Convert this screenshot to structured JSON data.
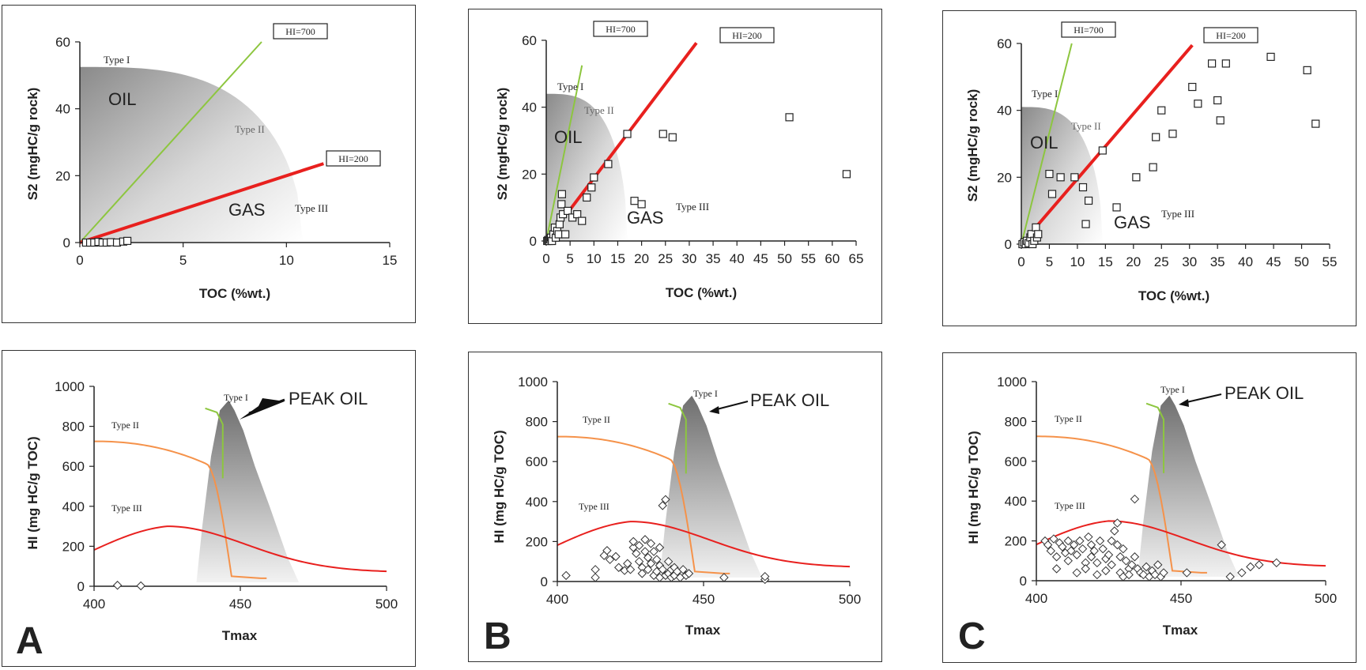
{
  "top_common": {
    "xlabel": "TOC (%wt.)",
    "ylabel": "S2 (mgHC/g rock)",
    "hi700": "HI=700",
    "hi200": "HI=200",
    "type1": "Type I",
    "type2": "Type II",
    "type3": "Type III",
    "oil": "OIL",
    "gas": "GAS"
  },
  "bottom_common": {
    "xlabel": "Tmax",
    "ylabel": "HI (mg HC/g TOC)",
    "type1": "Type I",
    "type2": "Type II",
    "type3": "Type III",
    "peak": "PEAK OIL"
  },
  "letters": {
    "a": "A",
    "b": "B",
    "c": "C"
  },
  "chart_data": [
    {
      "panel": "A",
      "type": "scatter",
      "xlim": [
        0,
        15
      ],
      "ylim": [
        0,
        60
      ],
      "xticks": [
        0,
        5,
        10,
        15
      ],
      "yticks": [
        0,
        20,
        40,
        60
      ],
      "points": [
        [
          0.3,
          0
        ],
        [
          0.5,
          0
        ],
        [
          0.7,
          0
        ],
        [
          0.9,
          0.2
        ],
        [
          1.1,
          0
        ],
        [
          1.3,
          0
        ],
        [
          1.5,
          0.1
        ],
        [
          1.8,
          0
        ],
        [
          2.1,
          0.3
        ],
        [
          2.3,
          0.5
        ]
      ]
    },
    {
      "panel": "B",
      "type": "scatter",
      "xlim": [
        0,
        65
      ],
      "ylim": [
        0,
        60
      ],
      "xticks": [
        0,
        5,
        10,
        15,
        20,
        25,
        30,
        35,
        40,
        45,
        50,
        55,
        60,
        65
      ],
      "yticks": [
        0,
        20,
        40,
        60
      ],
      "points": [
        [
          0.2,
          0
        ],
        [
          0.4,
          0.3
        ],
        [
          0.6,
          0
        ],
        [
          0.8,
          0.5
        ],
        [
          1.0,
          1
        ],
        [
          1.2,
          0
        ],
        [
          1.5,
          2
        ],
        [
          1.8,
          4
        ],
        [
          2.0,
          1
        ],
        [
          2.3,
          3
        ],
        [
          2.6,
          2
        ],
        [
          2.8,
          5
        ],
        [
          3.0,
          7
        ],
        [
          3.2,
          11
        ],
        [
          3.3,
          14
        ],
        [
          3.5,
          8
        ],
        [
          4.0,
          2
        ],
        [
          4.5,
          9
        ],
        [
          5.5,
          7
        ],
        [
          6.5,
          8
        ],
        [
          7.5,
          6
        ],
        [
          8.5,
          13
        ],
        [
          9.5,
          16
        ],
        [
          10.0,
          19
        ],
        [
          13.0,
          23
        ],
        [
          17.0,
          32
        ],
        [
          18.5,
          12
        ],
        [
          20.0,
          11
        ],
        [
          24.5,
          32
        ],
        [
          26.5,
          31
        ],
        [
          51.0,
          37
        ],
        [
          63.0,
          20
        ]
      ]
    },
    {
      "panel": "C",
      "type": "scatter",
      "xlim": [
        0,
        55
      ],
      "ylim": [
        0,
        60
      ],
      "xticks": [
        0,
        5,
        10,
        15,
        20,
        25,
        30,
        35,
        40,
        45,
        50,
        55
      ],
      "yticks": [
        0,
        20,
        40,
        60
      ],
      "points": [
        [
          0.2,
          0
        ],
        [
          0.5,
          0.5
        ],
        [
          0.8,
          0
        ],
        [
          1.0,
          1
        ],
        [
          1.3,
          0.3
        ],
        [
          1.6,
          2
        ],
        [
          1.8,
          3
        ],
        [
          2.0,
          0
        ],
        [
          2.3,
          1
        ],
        [
          2.6,
          5
        ],
        [
          2.8,
          2
        ],
        [
          3.0,
          3
        ],
        [
          5.0,
          21
        ],
        [
          5.5,
          15
        ],
        [
          7.0,
          20
        ],
        [
          9.5,
          20
        ],
        [
          11.0,
          17
        ],
        [
          11.5,
          6
        ],
        [
          12.0,
          13
        ],
        [
          14.5,
          28
        ],
        [
          17.0,
          11
        ],
        [
          20.5,
          20
        ],
        [
          23.5,
          23
        ],
        [
          24.0,
          32
        ],
        [
          25.0,
          40
        ],
        [
          27.0,
          33
        ],
        [
          30.5,
          47
        ],
        [
          31.5,
          42
        ],
        [
          34.0,
          54
        ],
        [
          35.0,
          43
        ],
        [
          35.5,
          37
        ],
        [
          36.5,
          54
        ],
        [
          44.5,
          56
        ],
        [
          51.0,
          52
        ],
        [
          52.5,
          36
        ]
      ]
    },
    {
      "panel": "A",
      "type": "scatter",
      "xlim": [
        400,
        500
      ],
      "ylim": [
        0,
        1000
      ],
      "xticks": [
        400,
        450,
        500
      ],
      "yticks": [
        0,
        200,
        400,
        600,
        800,
        1000
      ],
      "points": [
        [
          408,
          5
        ],
        [
          416,
          2
        ]
      ]
    },
    {
      "panel": "B",
      "type": "scatter",
      "xlim": [
        400,
        500
      ],
      "ylim": [
        0,
        1000
      ],
      "xticks": [
        400,
        450,
        500
      ],
      "yticks": [
        0,
        200,
        400,
        600,
        800,
        1000
      ],
      "points": [
        [
          403,
          30
        ],
        [
          413,
          20
        ],
        [
          413,
          60
        ],
        [
          416,
          130
        ],
        [
          417,
          155
        ],
        [
          418,
          110
        ],
        [
          420,
          125
        ],
        [
          421,
          70
        ],
        [
          423,
          55
        ],
        [
          424,
          90
        ],
        [
          425,
          60
        ],
        [
          426,
          170
        ],
        [
          426,
          200
        ],
        [
          427,
          140
        ],
        [
          428,
          100
        ],
        [
          428,
          180
        ],
        [
          429,
          70
        ],
        [
          429,
          40
        ],
        [
          430,
          150
        ],
        [
          430,
          210
        ],
        [
          431,
          120
        ],
        [
          431,
          60
        ],
        [
          432,
          190
        ],
        [
          432,
          90
        ],
        [
          433,
          30
        ],
        [
          433,
          150
        ],
        [
          434,
          110
        ],
        [
          434,
          50
        ],
        [
          435,
          170
        ],
        [
          435,
          80
        ],
        [
          435,
          20
        ],
        [
          436,
          380
        ],
        [
          436,
          60
        ],
        [
          437,
          410
        ],
        [
          437,
          30
        ],
        [
          438,
          40
        ],
        [
          438,
          100
        ],
        [
          439,
          60
        ],
        [
          439,
          20
        ],
        [
          440,
          30
        ],
        [
          440,
          70
        ],
        [
          441,
          50
        ],
        [
          442,
          20
        ],
        [
          443,
          60
        ],
        [
          444,
          30
        ],
        [
          445,
          40
        ],
        [
          457,
          20
        ],
        [
          471,
          10
        ],
        [
          471,
          25
        ]
      ]
    },
    {
      "panel": "C",
      "type": "scatter",
      "xlim": [
        400,
        500
      ],
      "ylim": [
        0,
        1000
      ],
      "xticks": [
        400,
        450,
        500
      ],
      "yticks": [
        0,
        200,
        400,
        600,
        800,
        1000
      ],
      "points": [
        [
          403,
          200
        ],
        [
          404,
          180
        ],
        [
          405,
          150
        ],
        [
          406,
          210
        ],
        [
          407,
          120
        ],
        [
          407,
          60
        ],
        [
          408,
          190
        ],
        [
          409,
          170
        ],
        [
          410,
          140
        ],
        [
          411,
          200
        ],
        [
          411,
          100
        ],
        [
          412,
          150
        ],
        [
          413,
          180
        ],
        [
          414,
          130
        ],
        [
          414,
          40
        ],
        [
          415,
          200
        ],
        [
          416,
          160
        ],
        [
          417,
          90
        ],
        [
          417,
          60
        ],
        [
          418,
          220
        ],
        [
          419,
          180
        ],
        [
          419,
          120
        ],
        [
          420,
          150
        ],
        [
          421,
          90
        ],
        [
          421,
          30
        ],
        [
          422,
          200
        ],
        [
          423,
          160
        ],
        [
          424,
          110
        ],
        [
          424,
          50
        ],
        [
          425,
          130
        ],
        [
          426,
          80
        ],
        [
          426,
          200
        ],
        [
          427,
          250
        ],
        [
          428,
          290
        ],
        [
          428,
          180
        ],
        [
          429,
          120
        ],
        [
          429,
          40
        ],
        [
          430,
          160
        ],
        [
          430,
          20
        ],
        [
          431,
          100
        ],
        [
          432,
          60
        ],
        [
          432,
          30
        ],
        [
          433,
          80
        ],
        [
          434,
          410
        ],
        [
          434,
          120
        ],
        [
          435,
          60
        ],
        [
          436,
          40
        ],
        [
          437,
          30
        ],
        [
          438,
          70
        ],
        [
          439,
          20
        ],
        [
          440,
          50
        ],
        [
          441,
          30
        ],
        [
          442,
          80
        ],
        [
          443,
          20
        ],
        [
          444,
          40
        ],
        [
          452,
          40
        ],
        [
          464,
          180
        ],
        [
          467,
          20
        ],
        [
          471,
          40
        ],
        [
          474,
          70
        ],
        [
          477,
          80
        ],
        [
          483,
          90
        ]
      ]
    }
  ]
}
